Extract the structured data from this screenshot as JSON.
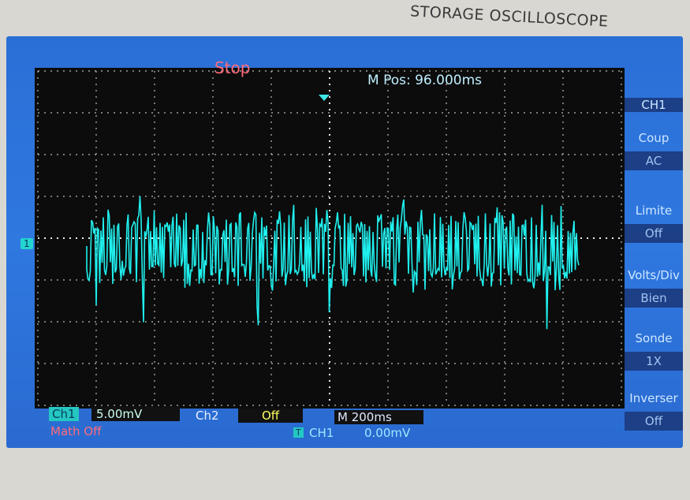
{
  "header": {
    "brand": "STORAGE OSCILLOSCOPE",
    "status": "Stop",
    "position": "M Pos: 96.000ms"
  },
  "menu": [
    {
      "label": "CH1"
    },
    {
      "label": "Coup",
      "value": "AC"
    },
    {
      "label": "Limite",
      "value": "Off"
    },
    {
      "label": "Volts/Div",
      "value": "Bien"
    },
    {
      "label": "Sonde",
      "value": "1X"
    },
    {
      "label": "Inverser",
      "value": "Off"
    }
  ],
  "status_bar": {
    "ch1_label": "Ch1",
    "ch1_scale": "5.00mV",
    "ch2_label": "Ch2",
    "ch2_value": "Off",
    "timebase": "M 200ms",
    "math": "Math Off",
    "trigger_mark": "T",
    "trigger_source": "CH1",
    "trigger_level": "0.00mV"
  },
  "channel_marker": "1"
}
